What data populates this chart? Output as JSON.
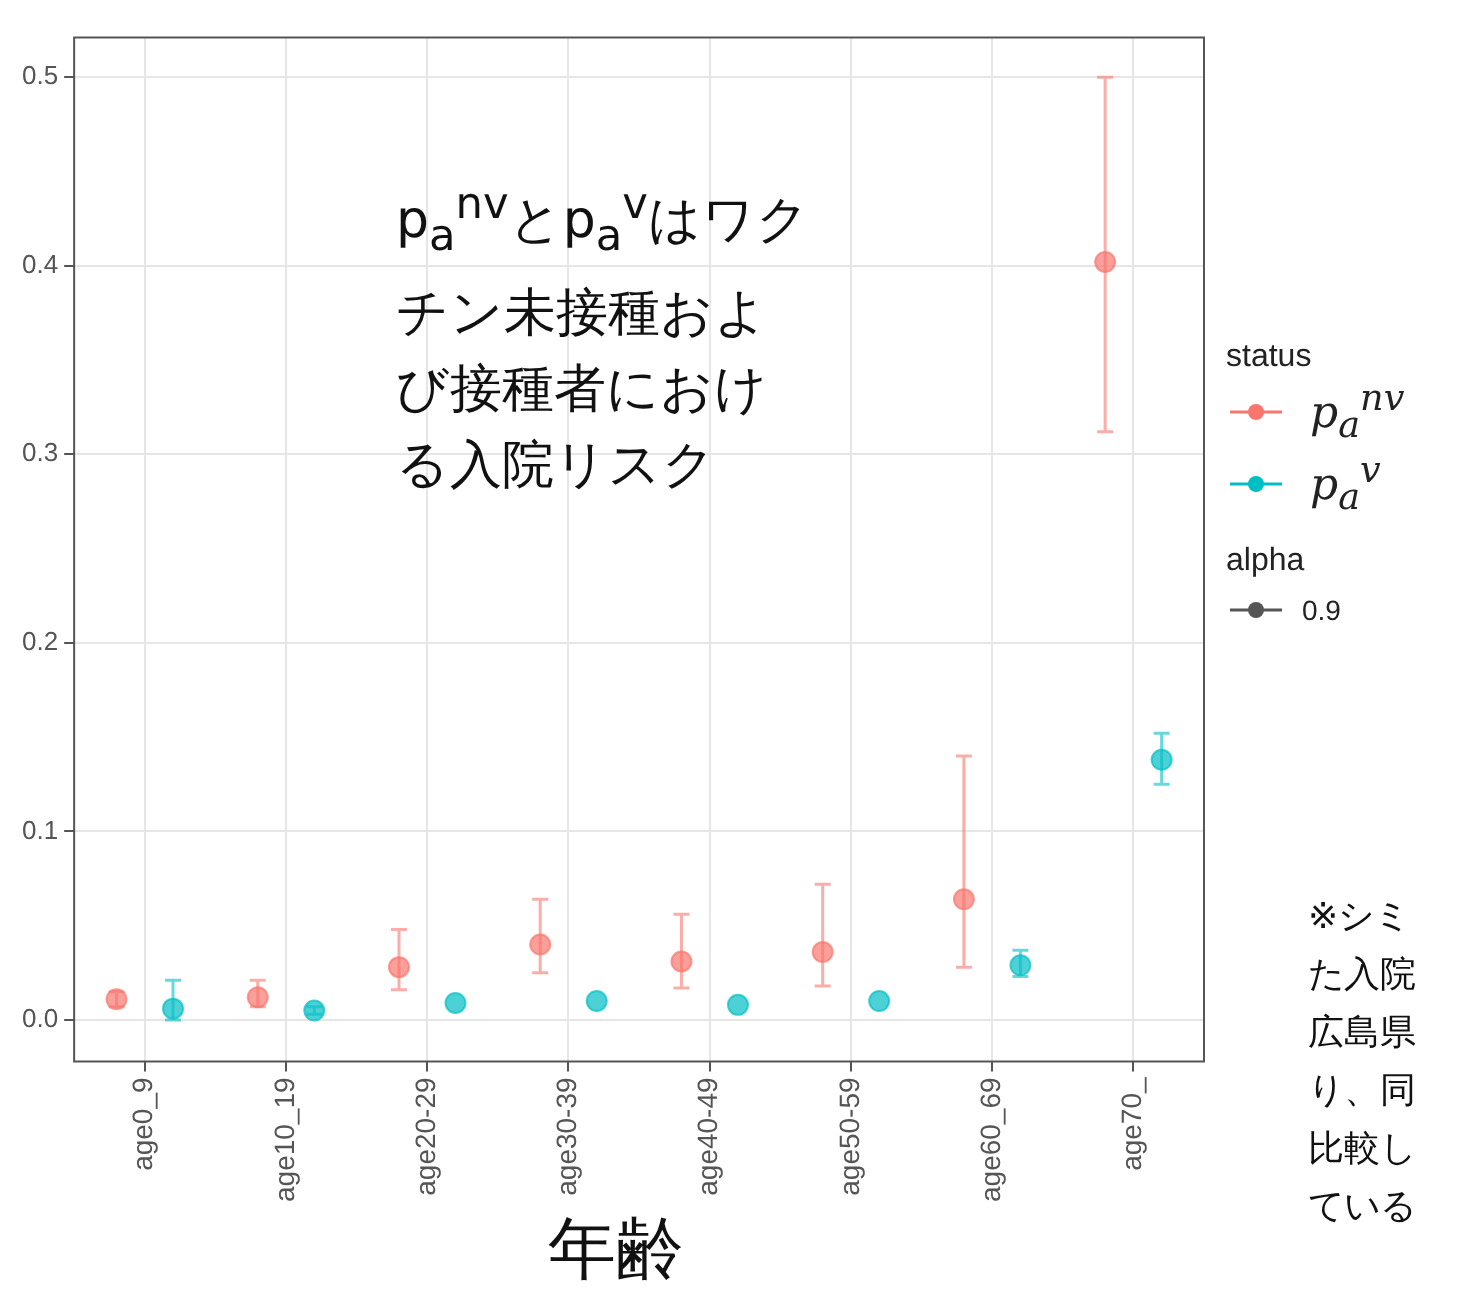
{
  "chart_data": {
    "type": "scatter",
    "xlabel": "年齢",
    "legend_title": "status",
    "legend": "right",
    "grid": true,
    "marker": "circle",
    "categories": [
      "age0_9",
      "age10_19",
      "age20-29",
      "age30-39",
      "age40-49",
      "age50-59",
      "age60_69",
      "age70_"
    ],
    "ylim": [
      -0.022,
      0.521
    ],
    "yticks": [
      {
        "value": 0,
        "label": "0.0"
      },
      {
        "value": 0.1,
        "label": "0.1"
      },
      {
        "value": 0.2,
        "label": "0.2"
      },
      {
        "value": 0.3,
        "label": "0.3"
      },
      {
        "value": 0.4,
        "label": "0.4"
      },
      {
        "value": 0.5,
        "label": "0.5"
      }
    ],
    "series": [
      {
        "name": "p$_{a}$$^{nv}$",
        "color": "#f8766d",
        "values": [
          0.011,
          0.012,
          0.028,
          0.04,
          0.031,
          0.036,
          0.064,
          0.402
        ],
        "errors": [
          [
            0.007,
            0.015
          ],
          [
            0.007,
            0.021
          ],
          [
            0.016,
            0.048
          ],
          [
            0.025,
            0.064
          ],
          [
            0.017,
            0.056
          ],
          [
            0.018,
            0.072
          ],
          [
            0.028,
            0.14
          ],
          [
            0.312,
            0.5
          ]
        ]
      },
      {
        "name": "p$_{a}$$^{v}$",
        "color": "#00bfc4",
        "values": [
          0.006,
          0.005,
          0.009,
          0.01,
          0.008,
          0.01,
          0.029,
          0.138
        ],
        "errors": [
          [
            0.0,
            0.021
          ],
          [
            0.003,
            0.007
          ],
          null,
          null,
          null,
          null,
          [
            0.023,
            0.037
          ],
          [
            0.125,
            0.152
          ]
        ]
      }
    ],
    "annotations": [
      "p$_{a}$$^{nv}$とp$_{a}$$^{v}$はワクチン未接種および接種者における入院リスク",
      "alpha",
      "0.9",
      "※シミた入院広島県り、同比較している"
    ]
  }
}
